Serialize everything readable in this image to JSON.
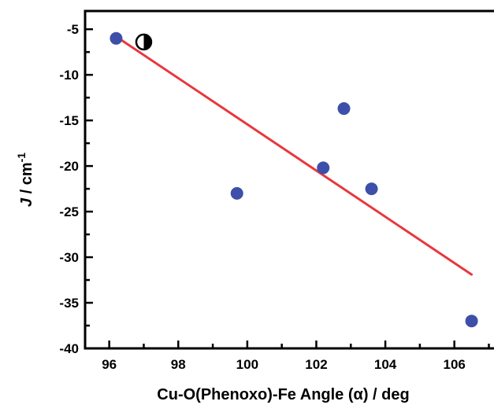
{
  "chart_data": {
    "type": "scatter",
    "title": "",
    "xlabel": "Cu-O(Phenoxo)-Fe Angle (α) / deg",
    "ylabel_italic": "J",
    "ylabel_rest": " / cm",
    "ylabel_superscript": "-1",
    "xlim": [
      95.3,
      107.4
    ],
    "ylim": [
      -40,
      -3
    ],
    "x_ticks": [
      96,
      98,
      100,
      102,
      104,
      106
    ],
    "y_ticks": [
      -5,
      -10,
      -15,
      -20,
      -25,
      -30,
      -35,
      -40
    ],
    "x_minor_step": 1,
    "y_minor_step": 2.5,
    "grid": false,
    "points": [
      {
        "x": 96.2,
        "y": -6.0
      },
      {
        "x": 99.7,
        "y": -23.0
      },
      {
        "x": 102.2,
        "y": -20.2
      },
      {
        "x": 102.8,
        "y": -13.7
      },
      {
        "x": 103.6,
        "y": -22.5
      },
      {
        "x": 106.5,
        "y": -37.0
      }
    ],
    "fit_line": {
      "x": [
        96.2,
        106.5
      ],
      "y": [
        -5.8,
        -31.9
      ]
    },
    "annotation_symbol": {
      "x": 97.0,
      "y": -6.4,
      "shape": "half-filled-circle"
    },
    "colors": {
      "points": "#3d4fa8",
      "fit_line": "#e8383d",
      "axes": "#000000"
    }
  }
}
